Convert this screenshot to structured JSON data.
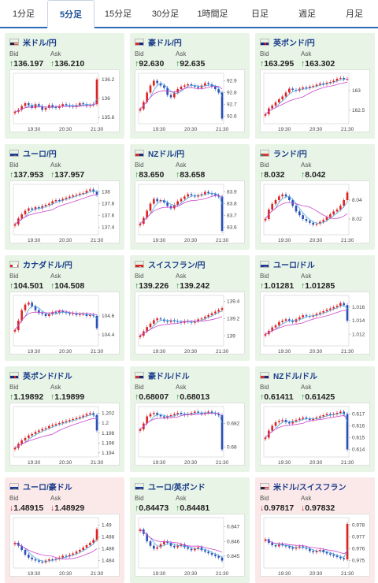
{
  "tabs": [
    {
      "label": "1分足",
      "active": false
    },
    {
      "label": "5分足",
      "active": true
    },
    {
      "label": "15分足",
      "active": false
    },
    {
      "label": "30分足",
      "active": false
    },
    {
      "label": "1時間足",
      "active": false
    },
    {
      "label": "日足",
      "active": false
    },
    {
      "label": "週足",
      "active": false
    },
    {
      "label": "月足",
      "active": false
    }
  ],
  "bid_label": "Bid",
  "ask_label": "Ask",
  "x_ticks": [
    "19:30",
    "20:30",
    "21:30"
  ],
  "colors": {
    "up_card": "#e8f4e6",
    "down_card": "#fbe9ea",
    "candle_up": "#dd2222",
    "candle_down": "#2a50b8",
    "ma_short": "#4aa8e0",
    "ma_long": "#cc44cc"
  },
  "cards": [
    {
      "pair": "米ドル/円",
      "dir": "up",
      "flag": "us",
      "bid": "136.197",
      "ask": "136.210",
      "y_ticks": [
        "136.2",
        "136",
        "135.8"
      ],
      "y_range": [
        135.75,
        136.25
      ],
      "trend": [
        135.86,
        135.88,
        135.92,
        135.95,
        135.93,
        135.9,
        135.94,
        135.92,
        135.88,
        135.9,
        135.93,
        135.91,
        135.9,
        135.92,
        135.94,
        135.93,
        135.92,
        135.91,
        135.93,
        135.95,
        135.94,
        135.92,
        135.93,
        135.94,
        136.2
      ]
    },
    {
      "pair": "豪ドル/円",
      "dir": "up",
      "flag": "au",
      "bid": "92.630",
      "ask": "92.635",
      "y_ticks": [
        "92.9",
        "92.8",
        "92.7",
        "92.6"
      ],
      "y_range": [
        92.55,
        92.95
      ],
      "trend": [
        92.66,
        92.72,
        92.8,
        92.86,
        92.9,
        92.88,
        92.86,
        92.84,
        92.78,
        92.76,
        92.8,
        92.83,
        92.85,
        92.86,
        92.87,
        92.86,
        92.85,
        92.84,
        92.86,
        92.88,
        92.87,
        92.85,
        92.83,
        92.8,
        92.58
      ]
    },
    {
      "pair": "英ポンド/円",
      "dir": "up",
      "flag": "uk",
      "bid": "163.295",
      "ask": "163.302",
      "y_ticks": [
        "163",
        "162.5"
      ],
      "y_range": [
        162.2,
        163.4
      ],
      "trend": [
        162.4,
        162.55,
        162.62,
        162.7,
        162.78,
        162.85,
        162.95,
        163.05,
        163.02,
        163.0,
        163.05,
        163.08,
        163.06,
        163.1,
        163.12,
        163.15,
        163.18,
        163.16,
        163.2,
        163.22,
        163.25,
        163.3,
        163.32,
        163.28,
        163.3
      ]
    },
    {
      "pair": "ユーロ/円",
      "dir": "up",
      "flag": "eu",
      "bid": "137.953",
      "ask": "137.957",
      "y_ticks": [
        "138",
        "137.8",
        "137.6",
        "137.4"
      ],
      "y_range": [
        137.3,
        138.1
      ],
      "trend": [
        137.45,
        137.55,
        137.62,
        137.68,
        137.72,
        137.7,
        137.74,
        137.72,
        137.76,
        137.78,
        137.8,
        137.84,
        137.86,
        137.85,
        137.88,
        137.9,
        137.92,
        137.94,
        137.95,
        137.97,
        137.98,
        138.02,
        138.04,
        138.0,
        137.95
      ]
    },
    {
      "pair": "NZドル/円",
      "dir": "up",
      "flag": "nz",
      "bid": "83.650",
      "ask": "83.658",
      "y_ticks": [
        "83.9",
        "83.8",
        "83.7",
        "83.6"
      ],
      "y_range": [
        83.55,
        83.95
      ],
      "trend": [
        83.63,
        83.68,
        83.74,
        83.8,
        83.84,
        83.82,
        83.83,
        83.81,
        83.78,
        83.76,
        83.79,
        83.82,
        83.84,
        83.86,
        83.88,
        83.87,
        83.86,
        83.87,
        83.88,
        83.9,
        83.89,
        83.88,
        83.87,
        83.86,
        83.57
      ]
    },
    {
      "pair": "ランド/円",
      "dir": "up",
      "flag": "za",
      "bid": "8.032",
      "ask": "8.042",
      "y_ticks": [
        "8.04",
        "8.02"
      ],
      "y_range": [
        8.005,
        8.055
      ],
      "trend": [
        8.02,
        8.03,
        8.036,
        8.04,
        8.044,
        8.046,
        8.044,
        8.04,
        8.034,
        8.028,
        8.024,
        8.02,
        8.018,
        8.016,
        8.014,
        8.015,
        8.017,
        8.019,
        8.022,
        8.025,
        8.028,
        8.03,
        8.034,
        8.04,
        8.048
      ]
    },
    {
      "pair": "カナダドル/円",
      "dir": "up",
      "flag": "ca",
      "bid": "104.501",
      "ask": "104.508",
      "y_ticks": [
        "104.6",
        "104.4"
      ],
      "y_range": [
        104.3,
        104.8
      ],
      "trend": [
        104.45,
        104.55,
        104.66,
        104.72,
        104.74,
        104.7,
        104.66,
        104.63,
        104.62,
        104.6,
        104.62,
        104.64,
        104.63,
        104.65,
        104.64,
        104.63,
        104.62,
        104.63,
        104.61,
        104.62,
        104.62,
        104.6,
        104.61,
        104.6,
        104.47
      ]
    },
    {
      "pair": "スイスフラン/円",
      "dir": "up",
      "flag": "ch",
      "bid": "139.226",
      "ask": "139.242",
      "y_ticks": [
        "139.4",
        "139.2",
        "139"
      ],
      "y_range": [
        138.9,
        139.45
      ],
      "trend": [
        139.0,
        139.05,
        139.1,
        139.14,
        139.18,
        139.2,
        139.19,
        139.17,
        139.16,
        139.18,
        139.17,
        139.16,
        139.15,
        139.17,
        139.16,
        139.15,
        139.17,
        139.19,
        139.2,
        139.22,
        139.24,
        139.26,
        139.28,
        139.3,
        139.32
      ]
    },
    {
      "pair": "ユーロ/ドル",
      "dir": "up",
      "flag": "eu",
      "bid": "1.01281",
      "ask": "1.01285",
      "y_ticks": [
        "1.016",
        "1.014",
        "1.012"
      ],
      "y_range": [
        1.0105,
        1.0175
      ],
      "trend": [
        1.012,
        1.0125,
        1.013,
        1.0133,
        1.0138,
        1.014,
        1.0142,
        1.014,
        1.0138,
        1.0142,
        1.0145,
        1.0148,
        1.0147,
        1.0146,
        1.0148,
        1.015,
        1.0152,
        1.0154,
        1.0156,
        1.0158,
        1.016,
        1.0162,
        1.0166,
        1.0163,
        1.014
      ]
    },
    {
      "pair": "英ポンド/ドル",
      "dir": "up",
      "flag": "uk",
      "bid": "1.19892",
      "ask": "1.19899",
      "y_ticks": [
        "1.202",
        "1.2",
        "1.198",
        "1.196",
        "1.194"
      ],
      "y_range": [
        1.1935,
        1.203
      ],
      "trend": [
        1.195,
        1.1958,
        1.1965,
        1.197,
        1.1975,
        1.1978,
        1.1982,
        1.1985,
        1.1988,
        1.199,
        1.1994,
        1.1996,
        1.1998,
        1.2,
        1.2002,
        1.2004,
        1.2006,
        1.2008,
        1.201,
        1.2012,
        1.2015,
        1.2018,
        1.202,
        1.2016,
        1.1985
      ]
    },
    {
      "pair": "豪ドル/ドル",
      "dir": "up",
      "flag": "au",
      "bid": "0.68007",
      "ask": "0.68013",
      "y_ticks": [
        "0.682",
        "0.68"
      ],
      "y_range": [
        0.6793,
        0.6833
      ],
      "trend": [
        0.6815,
        0.682,
        0.6826,
        0.6828,
        0.6829,
        0.6827,
        0.6826,
        0.6825,
        0.6826,
        0.6827,
        0.6828,
        0.6829,
        0.6828,
        0.6827,
        0.6828,
        0.6829,
        0.683,
        0.6829,
        0.6828,
        0.6829,
        0.683,
        0.6829,
        0.6828,
        0.6827,
        0.6798
      ]
    },
    {
      "pair": "NZドル/ドル",
      "dir": "up",
      "flag": "nz",
      "bid": "0.61411",
      "ask": "0.61425",
      "y_ticks": [
        "0.617",
        "0.616",
        "0.615",
        "0.614"
      ],
      "y_range": [
        0.6135,
        0.6175
      ],
      "trend": [
        0.615,
        0.6156,
        0.616,
        0.6163,
        0.6164,
        0.6165,
        0.6163,
        0.6162,
        0.6164,
        0.6165,
        0.6166,
        0.6167,
        0.6166,
        0.6165,
        0.6166,
        0.6167,
        0.6168,
        0.6169,
        0.617,
        0.6169,
        0.617,
        0.6171,
        0.6172,
        0.617,
        0.614
      ]
    },
    {
      "pair": "ユーロ/豪ドル",
      "dir": "down",
      "flag": "eu",
      "bid": "1.48915",
      "ask": "1.48929",
      "y_ticks": [
        "1.49",
        "1.488",
        "1.486",
        "1.484"
      ],
      "y_range": [
        1.483,
        1.491
      ],
      "trend": [
        1.487,
        1.4865,
        1.4858,
        1.485,
        1.4845,
        1.4842,
        1.484,
        1.4838,
        1.4837,
        1.484,
        1.4842,
        1.4841,
        1.4843,
        1.4845,
        1.4848,
        1.4847,
        1.485,
        1.4852,
        1.4855,
        1.4858,
        1.4862,
        1.4866,
        1.487,
        1.4875,
        1.4893
      ]
    },
    {
      "pair": "ユーロ/英ポンド",
      "dir": "up",
      "flag": "eu",
      "bid": "0.84473",
      "ask": "0.84481",
      "y_ticks": [
        "0.847",
        "0.846",
        "0.845"
      ],
      "y_range": [
        0.8443,
        0.8475
      ],
      "trend": [
        0.8468,
        0.8465,
        0.846,
        0.8457,
        0.8455,
        0.8456,
        0.8458,
        0.846,
        0.8459,
        0.8457,
        0.8456,
        0.8457,
        0.8458,
        0.8456,
        0.8455,
        0.8454,
        0.8455,
        0.8456,
        0.8454,
        0.8453,
        0.8452,
        0.8451,
        0.845,
        0.8449,
        0.8447
      ]
    },
    {
      "pair": "米ドル/スイスフラン",
      "dir": "down",
      "flag": "us",
      "bid": "0.97817",
      "ask": "0.97832",
      "y_ticks": [
        "0.978",
        "0.977",
        "0.976",
        "0.975"
      ],
      "y_range": [
        0.9745,
        0.9785
      ],
      "trend": [
        0.9768,
        0.9765,
        0.9763,
        0.9762,
        0.9764,
        0.9763,
        0.9762,
        0.9761,
        0.976,
        0.9761,
        0.9762,
        0.9761,
        0.976,
        0.9758,
        0.9757,
        0.9758,
        0.9759,
        0.9757,
        0.9756,
        0.9755,
        0.9754,
        0.9753,
        0.9752,
        0.9751,
        0.9781
      ]
    }
  ]
}
